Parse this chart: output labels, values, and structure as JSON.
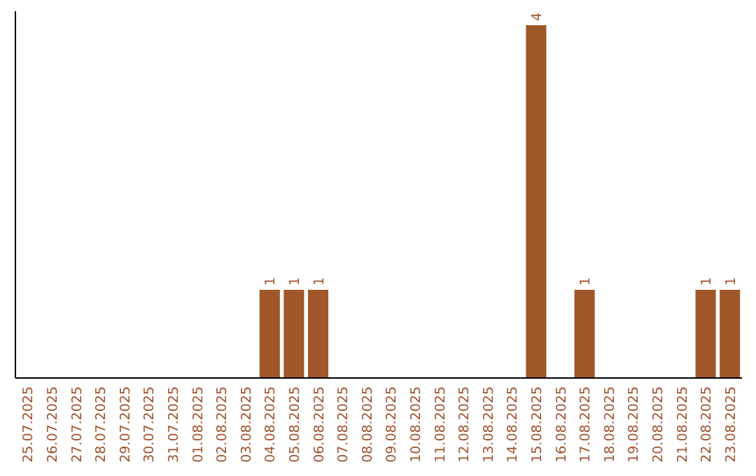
{
  "chart_data": {
    "type": "bar",
    "categories": [
      "25.07.2025",
      "26.07.2025",
      "27.07.2025",
      "28.07.2025",
      "29.07.2025",
      "30.07.2025",
      "31.07.2025",
      "01.08.2025",
      "02.08.2025",
      "03.08.2025",
      "04.08.2025",
      "05.08.2025",
      "06.08.2025",
      "07.08.2025",
      "08.08.2025",
      "09.08.2025",
      "10.08.2025",
      "11.08.2025",
      "12.08.2025",
      "13.08.2025",
      "14.08.2025",
      "15.08.2025",
      "16.08.2025",
      "17.08.2025",
      "18.08.2025",
      "19.08.2025",
      "20.08.2025",
      "21.08.2025",
      "22.08.2025",
      "23.08.2025"
    ],
    "values": [
      0,
      0,
      0,
      0,
      0,
      0,
      0,
      0,
      0,
      0,
      1,
      1,
      1,
      0,
      0,
      0,
      0,
      0,
      0,
      0,
      0,
      4,
      0,
      1,
      0,
      0,
      0,
      0,
      1,
      1
    ],
    "value_labels": [
      null,
      null,
      null,
      null,
      null,
      null,
      null,
      null,
      null,
      null,
      "1",
      "1",
      "1",
      null,
      null,
      null,
      null,
      null,
      null,
      null,
      null,
      "4",
      null,
      "1",
      null,
      null,
      null,
      null,
      "1",
      "1"
    ],
    "color": "#a0572a",
    "tick_labels": "x"
  }
}
